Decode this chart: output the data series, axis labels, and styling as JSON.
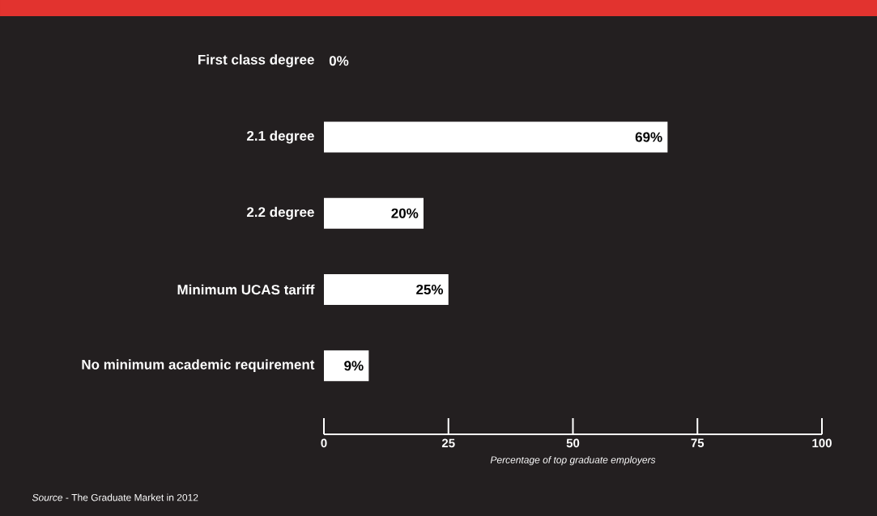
{
  "chart_data": {
    "type": "bar",
    "orientation": "horizontal",
    "categories": [
      "First class degree",
      "2.1 degree",
      "2.2 degree",
      "Minimum UCAS tariff",
      "No minimum academic requirement"
    ],
    "values": [
      0,
      69,
      20,
      25,
      9
    ],
    "value_labels": [
      "0%",
      "69%",
      "20%",
      "25%",
      "9%"
    ],
    "color": "#ffffff",
    "xlim": [
      0,
      100
    ],
    "xticks": [
      0,
      25,
      50,
      75,
      100
    ],
    "xlabel": "Percentage of top graduate employers",
    "grid": false,
    "annotations": [
      "*Source* - The Graduate Market in 2012"
    ]
  }
}
